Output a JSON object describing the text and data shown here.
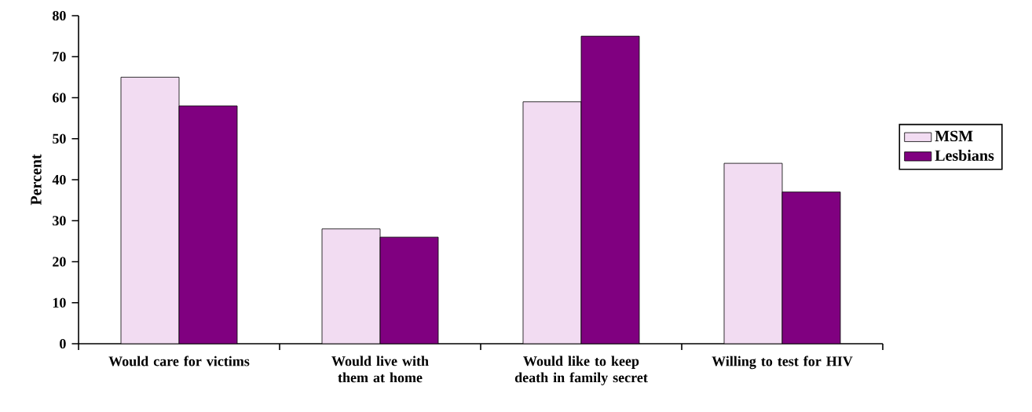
{
  "chart_data": {
    "type": "bar",
    "ylabel": "Percent",
    "categories": [
      "Would care for victims",
      "Would live with them at home",
      "Would like to keep death in family secret",
      "Willing to test for HIV"
    ],
    "series": [
      {
        "name": "MSM",
        "color": "#f2dcf2",
        "values": [
          65,
          28,
          59,
          44
        ]
      },
      {
        "name": "Lesbians",
        "color": "#800080",
        "values": [
          58,
          26,
          75,
          37
        ]
      }
    ],
    "ylim": [
      0,
      80
    ],
    "yticks": [
      0,
      10,
      20,
      30,
      40,
      50,
      60,
      70,
      80
    ],
    "grid": false,
    "legend": "right"
  }
}
